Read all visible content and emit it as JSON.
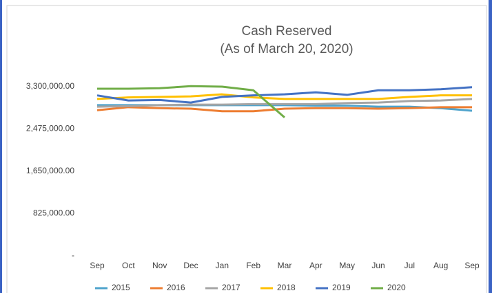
{
  "chart_data": {
    "type": "line",
    "title": "Cash Reserved",
    "subtitle": "(As of March 20, 2020)",
    "categories": [
      "Sep",
      "Oct",
      "Nov",
      "Dec",
      "Jan",
      "Feb",
      "Mar",
      "Apr",
      "May",
      "Jun",
      "Jul",
      "Aug",
      "Sep"
    ],
    "series": [
      {
        "name": "2015",
        "color": "#4ea3cc",
        "values": [
          2940000,
          2940000,
          2940000,
          2940000,
          2940000,
          2940000,
          2940000,
          2930000,
          2930000,
          2910000,
          2910000,
          2880000,
          2830000
        ]
      },
      {
        "name": "2016",
        "color": "#ed7d31",
        "values": [
          2840000,
          2900000,
          2880000,
          2870000,
          2820000,
          2820000,
          2870000,
          2880000,
          2880000,
          2870000,
          2880000,
          2900000,
          2900000
        ]
      },
      {
        "name": "2017",
        "color": "#a5a5a5",
        "values": [
          2910000,
          2920000,
          2940000,
          2950000,
          2950000,
          2960000,
          2960000,
          2960000,
          2980000,
          2990000,
          3020000,
          3030000,
          3060000
        ]
      },
      {
        "name": "2018",
        "color": "#ffc000",
        "values": [
          3060000,
          3090000,
          3100000,
          3110000,
          3150000,
          3090000,
          3060000,
          3060000,
          3060000,
          3060000,
          3100000,
          3130000,
          3130000
        ]
      },
      {
        "name": "2019",
        "color": "#4472c4",
        "values": [
          3130000,
          3030000,
          3040000,
          2990000,
          3100000,
          3130000,
          3150000,
          3190000,
          3140000,
          3230000,
          3230000,
          3250000,
          3290000
        ]
      },
      {
        "name": "2020",
        "color": "#70ad47",
        "values": [
          3260000,
          3260000,
          3270000,
          3310000,
          3300000,
          3230000,
          2700000,
          null,
          null,
          null,
          null,
          null,
          null
        ]
      }
    ],
    "ylim": [
      0,
      3300000
    ],
    "yticks": [
      {
        "value": 0,
        "label": "-"
      },
      {
        "value": 825000,
        "label": "825,000.00"
      },
      {
        "value": 1650000,
        "label": "1,650,000.00"
      },
      {
        "value": 2475000,
        "label": "2,475,000.00"
      },
      {
        "value": 3300000,
        "label": "3,300,000.00"
      }
    ],
    "grid": false,
    "legend": "bottom"
  }
}
